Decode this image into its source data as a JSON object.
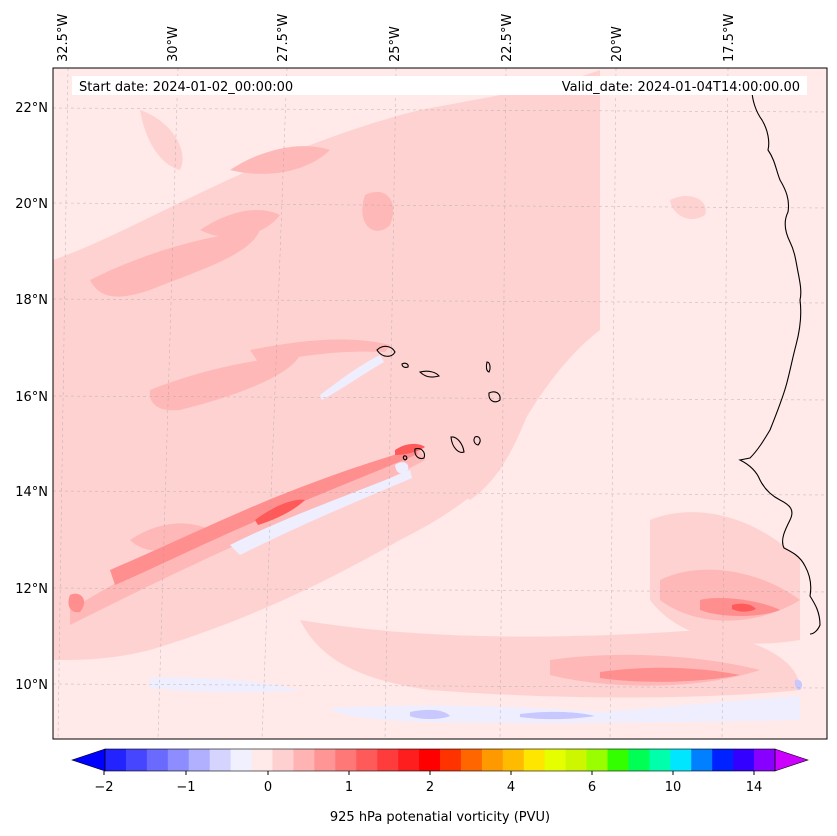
{
  "header": {
    "start_label": "Start date: 2024-01-02_00:00:00",
    "valid_label": "Valid_date: 2024-01-04T14:00:00.00"
  },
  "map": {
    "projection": "geographic lat/lon",
    "lon_ticks": [
      "32.5°W",
      "30°W",
      "27.5°W",
      "25°W",
      "22.5°W",
      "20°W",
      "17.5°W"
    ],
    "lat_ticks": [
      "22°N",
      "20°N",
      "18°N",
      "16°N",
      "14°N",
      "12°N",
      "10°N"
    ],
    "features": [
      "Cape Verde islands",
      "West African coastline"
    ],
    "gridlines": true
  },
  "colorbar": {
    "label": "925 hPa potenatial vorticity (PVU)",
    "tick_labels": [
      "−2",
      "−1",
      "0",
      "1",
      "2",
      "4",
      "6",
      "10",
      "14"
    ],
    "colors": [
      "#0000ff",
      "#2323ff",
      "#4646ff",
      "#6a6aff",
      "#8d8dff",
      "#b0b0ff",
      "#d4d4ff",
      "#f0f0ff",
      "#ffe9e9",
      "#ffd0d0",
      "#ffb3b3",
      "#ff9595",
      "#ff7878",
      "#ff5a5a",
      "#ff3c3c",
      "#ff1e1e",
      "#ff0000",
      "#ff3300",
      "#ff6600",
      "#ff9900",
      "#ffbb00",
      "#ffe600",
      "#e6ff00",
      "#ccf700",
      "#99ff00",
      "#33ff00",
      "#00ff55",
      "#00ffaa",
      "#00e6ff",
      "#0080ff",
      "#0022ff",
      "#3300ff",
      "#8800ff",
      "#cc00ff"
    ]
  }
}
